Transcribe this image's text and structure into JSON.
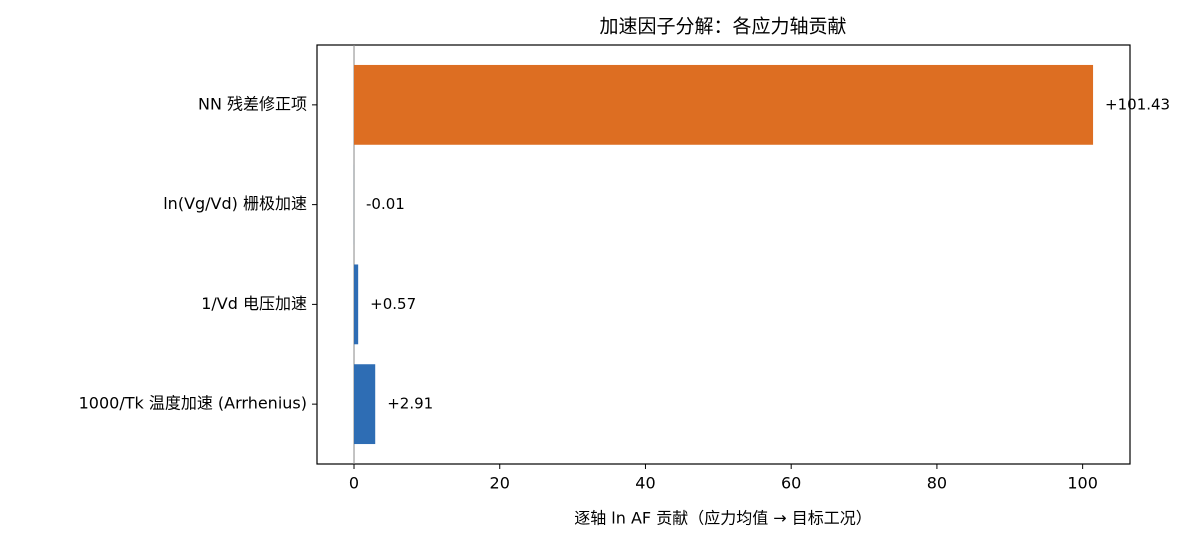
{
  "chart_data": {
    "type": "barh",
    "title": "加速因子分解：各应力轴贡献",
    "xlabel": "逐轴 ln AF 贡献（应力均值 → 目标工况）",
    "categories": [
      "NN 残差修正项",
      "ln(Vg/Vd) 栅极加速",
      "1/Vd 电压加速",
      "1000/Tk 温度加速 (Arrhenius)"
    ],
    "values": [
      101.43,
      -0.01,
      0.57,
      2.91
    ],
    "value_labels": [
      "+101.43",
      "-0.01",
      "+0.57",
      "+2.91"
    ],
    "colors": [
      "#dd6e22",
      "#2e6db4",
      "#2e6db4",
      "#2e6db4"
    ],
    "xlim": [
      -5.08,
      106.5
    ],
    "xticks": [
      0,
      20,
      40,
      60,
      80,
      100
    ]
  }
}
